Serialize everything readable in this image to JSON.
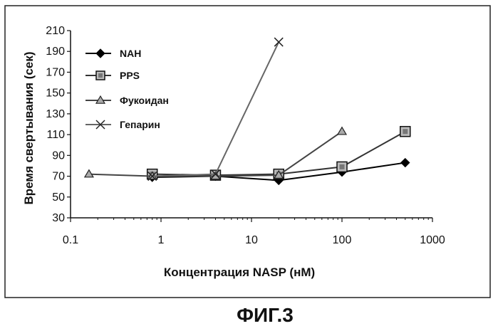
{
  "chart_data": {
    "type": "line",
    "x_scale": "log",
    "xlabel": "Концентрация NASP (нМ)",
    "ylabel": "Время свертывания (сек)",
    "xlim": [
      0.1,
      1000
    ],
    "ylim": [
      30,
      210
    ],
    "x_ticks": [
      0.1,
      1,
      10,
      100,
      1000
    ],
    "x_tick_labels": [
      "0.1",
      "1",
      "10",
      "100",
      "1000"
    ],
    "y_ticks": [
      30,
      50,
      70,
      90,
      110,
      130,
      150,
      170,
      190,
      210
    ],
    "y_tick_labels": [
      "30",
      "50",
      "70",
      "90",
      "110",
      "130",
      "150",
      "170",
      "190",
      "210"
    ],
    "legend_position": "top-left",
    "caption": "ФИГ.3",
    "series": [
      {
        "name": "NAH",
        "marker": "diamond",
        "color": "#000000",
        "x": [
          0.8,
          4,
          20,
          100,
          500
        ],
        "y": [
          69,
          70,
          66,
          74,
          83
        ]
      },
      {
        "name": "PPS",
        "marker": "square",
        "color": "#333333",
        "x": [
          0.8,
          4,
          20,
          100,
          500
        ],
        "y": [
          72,
          71,
          72,
          79,
          113
        ]
      },
      {
        "name": "Фукоидан",
        "marker": "triangle",
        "color": "#444444",
        "x": [
          0.16,
          0.8,
          4,
          20,
          100
        ],
        "y": [
          72,
          70,
          70,
          71,
          113
        ]
      },
      {
        "name": "Гепарин",
        "marker": "x",
        "color": "#666666",
        "x": [
          0.8,
          4,
          20
        ],
        "y": [
          70,
          72,
          199
        ]
      }
    ]
  }
}
